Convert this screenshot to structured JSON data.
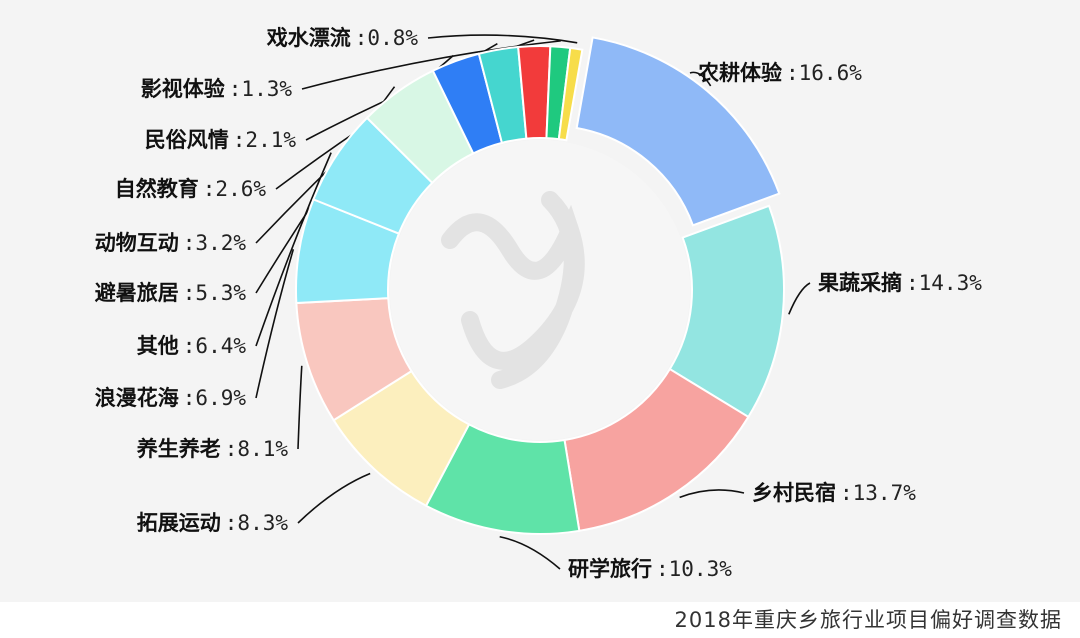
{
  "caption": "2018年重庆乡旅行业项目偏好调查数据",
  "chart_data": {
    "type": "pie",
    "variant": "donut",
    "slices": [
      {
        "label": "农耕体验",
        "value": 16.6,
        "value_label": ":16.6%",
        "color": "#8fb9f7"
      },
      {
        "label": "果蔬采摘",
        "value": 14.3,
        "value_label": ":14.3%",
        "color": "#93e5e1"
      },
      {
        "label": "乡村民宿",
        "value": 13.7,
        "value_label": ":13.7%",
        "color": "#f7a3a0"
      },
      {
        "label": "研学旅行",
        "value": 10.3,
        "value_label": ":10.3%",
        "color": "#5fe3a8"
      },
      {
        "label": "拓展运动",
        "value": 8.3,
        "value_label": ":8.3%",
        "color": "#fcefbe"
      },
      {
        "label": "养生养老",
        "value": 8.1,
        "value_label": ":8.1%",
        "color": "#f9c7bf"
      },
      {
        "label": "浪漫花海",
        "value": 6.9,
        "value_label": ":6.9%",
        "color": "#8fe9f7"
      },
      {
        "label": "其他",
        "value": 6.4,
        "value_label": ":6.4%",
        "color": "#8fe9f7"
      },
      {
        "label": "避暑旅居",
        "value": 5.3,
        "value_label": ":5.3%",
        "color": "#d8f7e5"
      },
      {
        "label": "动物互动",
        "value": 3.2,
        "value_label": ":3.2%",
        "color": "#2f7ef5"
      },
      {
        "label": "自然教育",
        "value": 2.6,
        "value_label": ":2.6%",
        "color": "#45d6cf"
      },
      {
        "label": "民俗风情",
        "value": 2.1,
        "value_label": ":2.1%",
        "color": "#f23b3b"
      },
      {
        "label": "影视体验",
        "value": 1.3,
        "value_label": ":1.3%",
        "color": "#1fc97f"
      },
      {
        "label": "戏水漂流",
        "value": 0.8,
        "value_label": ":0.8%",
        "color": "#f7dd4a"
      }
    ],
    "exploded_slice": "农耕体验",
    "legend": "none"
  }
}
